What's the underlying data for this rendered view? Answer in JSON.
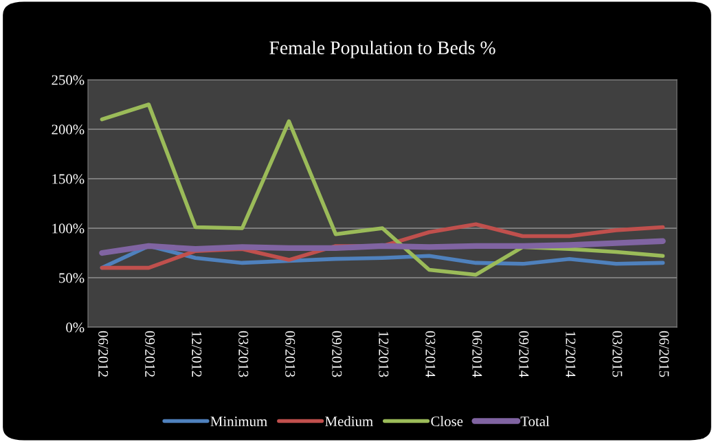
{
  "chart_data": {
    "type": "line",
    "title": "Female Population to Beds %",
    "categories": [
      "06/2012",
      "09/2012",
      "12/2012",
      "03/2013",
      "06/2013",
      "09/2013",
      "12/2013",
      "03/2014",
      "06/2014",
      "09/2014",
      "12/2014",
      "03/2015",
      "06/2015"
    ],
    "series": [
      {
        "name": "Minimum",
        "color": "#4f81bd",
        "values": [
          60,
          82,
          70,
          65,
          67,
          69,
          70,
          72,
          65,
          64,
          69,
          64,
          65
        ]
      },
      {
        "name": "Medium",
        "color": "#c0504d",
        "values": [
          60,
          60,
          77,
          79,
          68,
          82,
          82,
          96,
          104,
          92,
          92,
          98,
          101
        ]
      },
      {
        "name": "Close",
        "color": "#9bbb59",
        "values": [
          210,
          225,
          101,
          100,
          208,
          94,
          100,
          58,
          53,
          81,
          79,
          76,
          72
        ]
      },
      {
        "name": "Total",
        "color": "#8064a2",
        "values": [
          75,
          82,
          79,
          81,
          80,
          80,
          82,
          81,
          82,
          82,
          83,
          85,
          87
        ]
      }
    ],
    "ylim": [
      0,
      250
    ],
    "yticks": [
      {
        "value": 0,
        "label": "0%"
      },
      {
        "value": 50,
        "label": "50%"
      },
      {
        "value": 100,
        "label": "100%"
      },
      {
        "value": 150,
        "label": "150%"
      },
      {
        "value": 200,
        "label": "200%"
      },
      {
        "value": 250,
        "label": "250%"
      }
    ],
    "grid": "y",
    "legend": "bottom",
    "marker": "none",
    "line_style": "solid"
  }
}
